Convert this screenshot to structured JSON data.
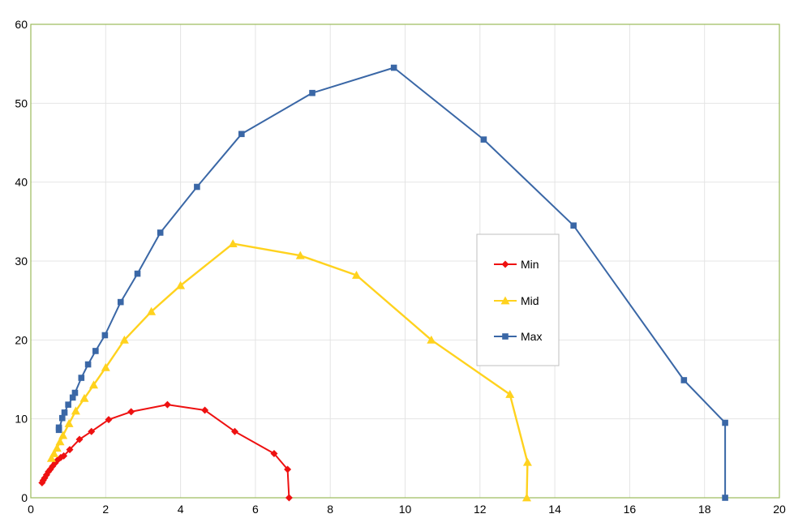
{
  "chart_data": {
    "type": "scatter",
    "title": "",
    "xlabel": "",
    "ylabel": "",
    "xlim": [
      0,
      20
    ],
    "ylim": [
      0,
      60
    ],
    "x_ticks": [
      "0",
      "2",
      "4",
      "6",
      "8",
      "10",
      "12",
      "14",
      "16",
      "18",
      "20"
    ],
    "y_ticks": [
      "0",
      "10",
      "20",
      "30",
      "40",
      "50",
      "60"
    ],
    "grid": true,
    "legend_position": "center-right",
    "series": [
      {
        "name": "Min",
        "color": "#ee1111",
        "marker": "diamond",
        "points": [
          [
            0.3,
            1.9
          ],
          [
            0.33,
            2.2
          ],
          [
            0.37,
            2.5
          ],
          [
            0.42,
            2.9
          ],
          [
            0.47,
            3.3
          ],
          [
            0.52,
            3.6
          ],
          [
            0.58,
            4.0
          ],
          [
            0.65,
            4.4
          ],
          [
            0.72,
            4.8
          ],
          [
            0.8,
            5.1
          ],
          [
            0.88,
            5.3
          ],
          [
            1.04,
            6.1
          ],
          [
            1.3,
            7.4
          ],
          [
            1.62,
            8.4
          ],
          [
            2.08,
            9.9
          ],
          [
            2.68,
            10.9
          ],
          [
            3.65,
            11.8
          ],
          [
            4.65,
            11.1
          ],
          [
            5.45,
            8.4
          ],
          [
            6.5,
            5.6
          ],
          [
            6.86,
            3.6
          ],
          [
            6.9,
            0.0
          ]
        ]
      },
      {
        "name": "Mid",
        "color": "#ffd21e",
        "marker": "triangle",
        "points": [
          [
            0.55,
            5.0
          ],
          [
            0.62,
            5.6
          ],
          [
            0.7,
            6.3
          ],
          [
            0.78,
            7.1
          ],
          [
            0.86,
            7.9
          ],
          [
            1.02,
            9.4
          ],
          [
            1.2,
            11.0
          ],
          [
            1.43,
            12.6
          ],
          [
            1.68,
            14.3
          ],
          [
            2.0,
            16.5
          ],
          [
            2.5,
            20.0
          ],
          [
            3.22,
            23.6
          ],
          [
            4.0,
            26.9
          ],
          [
            5.4,
            32.2
          ],
          [
            7.2,
            30.7
          ],
          [
            8.7,
            28.2
          ],
          [
            10.7,
            20.0
          ],
          [
            12.8,
            13.1
          ],
          [
            13.27,
            4.5
          ],
          [
            13.25,
            0.0
          ]
        ]
      },
      {
        "name": "Max",
        "color": "#3a67a6",
        "marker": "square",
        "points": [
          [
            0.75,
            8.9
          ],
          [
            0.75,
            8.6
          ],
          [
            0.84,
            10.1
          ],
          [
            0.9,
            10.8
          ],
          [
            1.0,
            11.8
          ],
          [
            1.12,
            12.7
          ],
          [
            1.18,
            13.3
          ],
          [
            1.35,
            15.2
          ],
          [
            1.53,
            16.9
          ],
          [
            1.73,
            18.6
          ],
          [
            1.98,
            20.6
          ],
          [
            2.4,
            24.8
          ],
          [
            2.85,
            28.4
          ],
          [
            3.46,
            33.6
          ],
          [
            4.44,
            39.4
          ],
          [
            5.63,
            46.1
          ],
          [
            7.52,
            51.3
          ],
          [
            9.7,
            54.5
          ],
          [
            12.1,
            45.4
          ],
          [
            14.5,
            34.5
          ],
          [
            17.45,
            14.9
          ],
          [
            18.55,
            9.5
          ],
          [
            18.55,
            0.0
          ]
        ]
      }
    ]
  }
}
